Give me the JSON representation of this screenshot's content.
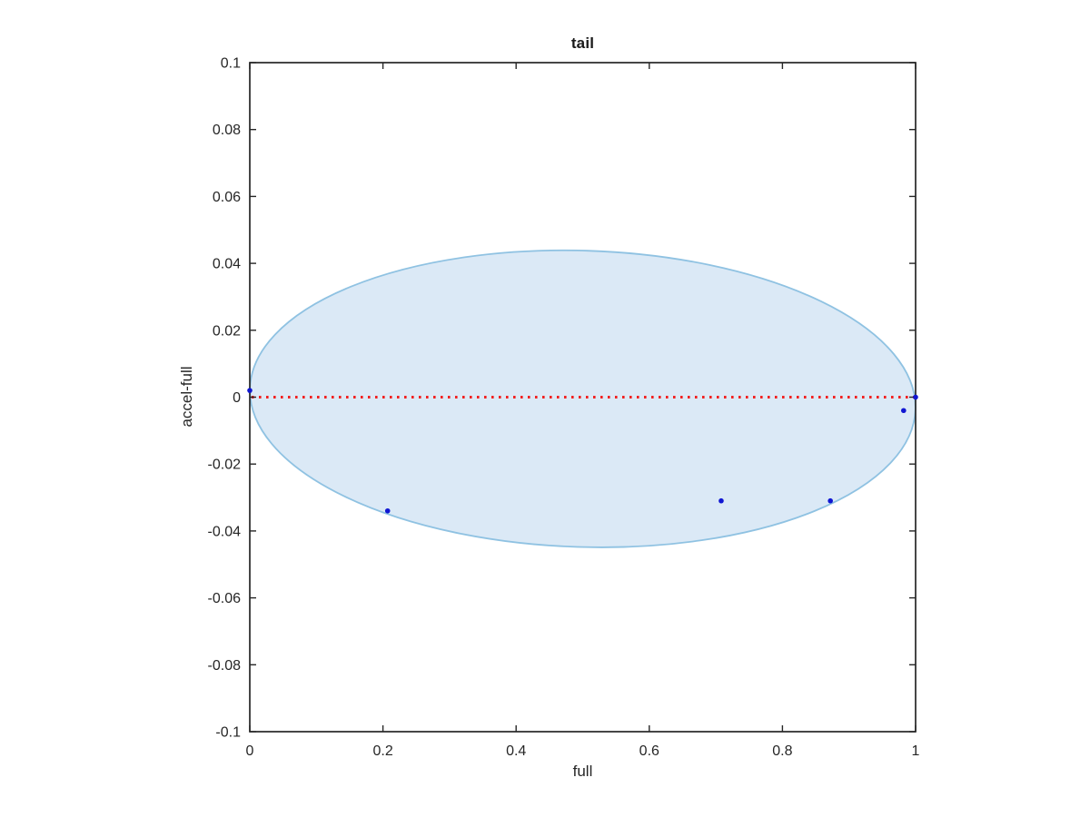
{
  "chart_data": {
    "type": "scatter",
    "title": "tail",
    "xlabel": "full",
    "ylabel": "accel-full",
    "xlim": [
      0,
      1
    ],
    "ylim": [
      -0.1,
      0.1
    ],
    "grid": false,
    "box": true,
    "legend": "none",
    "xticks": [
      0,
      0.2,
      0.4,
      0.6,
      0.8,
      1
    ],
    "xtick_labels": [
      "0",
      "0.2",
      "0.4",
      "0.6",
      "0.8",
      "1"
    ],
    "yticks": [
      -0.1,
      -0.08,
      -0.06,
      -0.04,
      -0.02,
      0,
      0.02,
      0.04,
      0.06,
      0.08,
      0.1
    ],
    "ytick_labels": [
      "-0.1",
      "-0.08",
      "-0.06",
      "-0.04",
      "-0.02",
      "0",
      "0.02",
      "0.04",
      "0.06",
      "0.08",
      "0.1"
    ],
    "colors": {
      "axis": "#262626",
      "region_fill": "#dbe9f6",
      "region_stroke": "#8fc2e2",
      "zero_line": "#f22020",
      "marker": "#1016d2"
    },
    "region": {
      "name": "shaded-confidence-region",
      "shape": "ellipse",
      "center": [
        0.5,
        -0.0005
      ],
      "rx": 0.5,
      "ry": 0.0443,
      "tilt_deg": 1.8
    },
    "zero_line": {
      "name": "zero-reference-line",
      "style": "dotted",
      "y": 0,
      "x_start": 0,
      "x_end": 1
    },
    "scatter_points": [
      [
        0.0,
        0.002
      ],
      [
        0.207,
        -0.034
      ],
      [
        0.708,
        -0.031
      ],
      [
        0.872,
        -0.031
      ],
      [
        0.982,
        -0.004
      ],
      [
        1.0,
        0.0
      ]
    ]
  }
}
